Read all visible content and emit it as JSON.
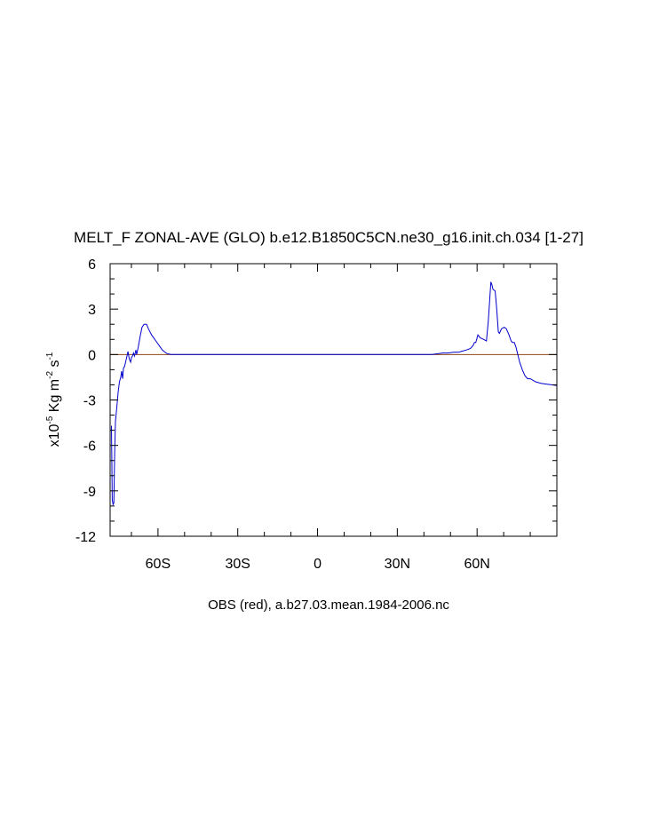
{
  "chart_data": {
    "type": "line",
    "title": "MELT_F ZONAL-AVE (GLO) b.e12.B1850C5CN.ne30_g16.init.ch.034 [1-27]",
    "ylabel": {
      "prefix": "x10",
      "exp": "-5",
      "units_a": " Kg m",
      "exp2": "-2",
      "units_b": " s",
      "exp3": "-1"
    },
    "xlabel": "OBS (red), a.b27.03.mean.1984-2006.nc",
    "xlim": [
      -78,
      90
    ],
    "ylim": [
      -12,
      6
    ],
    "x_ticks": [
      {
        "value": -60,
        "label": "60S"
      },
      {
        "value": -30,
        "label": "30S"
      },
      {
        "value": 0,
        "label": "0"
      },
      {
        "value": 30,
        "label": "30N"
      },
      {
        "value": 60,
        "label": "60N"
      }
    ],
    "y_ticks": [
      {
        "value": 6,
        "label": "6"
      },
      {
        "value": 3,
        "label": "3"
      },
      {
        "value": 0,
        "label": "0"
      },
      {
        "value": -3,
        "label": "-3"
      },
      {
        "value": -6,
        "label": "-6"
      },
      {
        "value": -9,
        "label": "-9"
      },
      {
        "value": -12,
        "label": "-12"
      }
    ],
    "zero_line_color": "#8b4513",
    "series": [
      {
        "color": "#0000cc",
        "x": [
          -77.5,
          -77.2,
          -76.9,
          -76.6,
          -76.3,
          -76,
          -75.5,
          -75,
          -74.5,
          -74,
          -73.7,
          -73.3,
          -73,
          -72.6,
          -72.2,
          -71.8,
          -71.3,
          -70.8,
          -70.3,
          -70,
          -69.6,
          -69.2,
          -68.8,
          -68.3,
          -68,
          -67.4,
          -66.7,
          -66,
          -65.2,
          -64.3,
          -63.6,
          -63,
          -62.4,
          -61.6,
          -60.8,
          -59.6,
          -58.4,
          -57,
          -56,
          -55,
          -54.3,
          -53.5,
          -52.5,
          -51,
          -49,
          -45,
          -30,
          0,
          30,
          40,
          43,
          45,
          47,
          49,
          51,
          53,
          54,
          56,
          57.5,
          58.5,
          59,
          59.5,
          60.3,
          61.2,
          62.5,
          63.5,
          64.2,
          64.8,
          65.2,
          65.6,
          66,
          66.8,
          67.4,
          68,
          68.4,
          69.2,
          70.2,
          71,
          72,
          72.8,
          73.3,
          74,
          74.6,
          75.3,
          76,
          77,
          78,
          79,
          80,
          81,
          82,
          83,
          84,
          86,
          88,
          90
        ],
        "y": [
          -4.7,
          -9.6,
          -9.9,
          -9.8,
          -6.5,
          -4.4,
          -3.5,
          -2.5,
          -1.8,
          -1.5,
          -1.1,
          -1.6,
          -0.9,
          -0.8,
          -0.5,
          -0.2,
          0.2,
          -0.3,
          -0.5,
          -0.2,
          -0.1,
          0.1,
          -0.1,
          0.3,
          0.0,
          0.5,
          1.2,
          1.8,
          2.0,
          2.0,
          1.7,
          1.5,
          1.3,
          1.1,
          0.9,
          0.6,
          0.3,
          0.1,
          0.03,
          0.0,
          0.0,
          0.0,
          0.0,
          0.0,
          0.0,
          0.0,
          0.0,
          0.0,
          0.0,
          0.0,
          0.0,
          0.05,
          0.1,
          0.1,
          0.15,
          0.15,
          0.2,
          0.3,
          0.4,
          0.6,
          0.8,
          0.8,
          1.3,
          1.1,
          1.0,
          0.9,
          2.2,
          3.8,
          4.8,
          4.6,
          4.3,
          4.2,
          3.0,
          1.5,
          1.4,
          1.7,
          1.8,
          1.7,
          1.3,
          0.9,
          0.8,
          0.8,
          0.5,
          0.0,
          -0.5,
          -1.0,
          -1.4,
          -1.6,
          -1.6,
          -1.7,
          -1.8,
          -1.85,
          -1.9,
          -1.95,
          -2.0,
          -2.05
        ]
      }
    ]
  }
}
